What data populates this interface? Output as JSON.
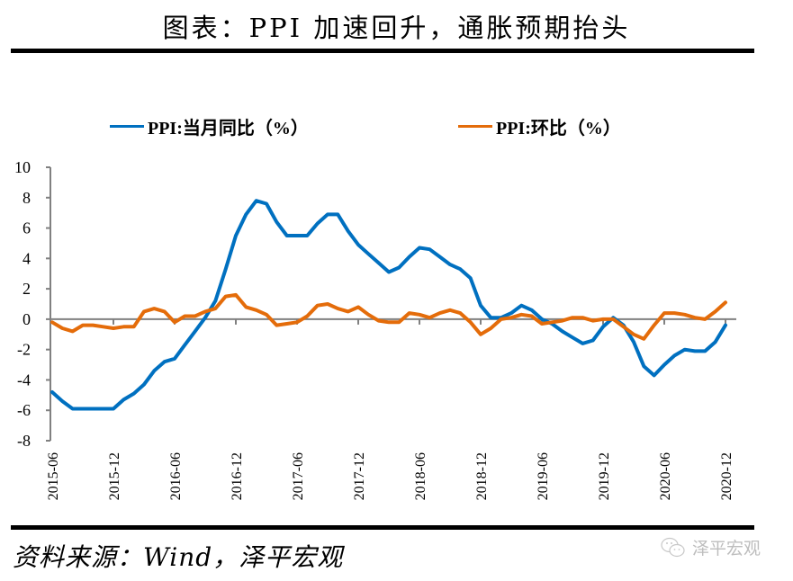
{
  "header": {
    "title": "图表：PPI 加速回升，通胀预期抬头"
  },
  "footer": {
    "source": "资料来源：Wind，泽平宏观",
    "watermark": "泽平宏观"
  },
  "colors": {
    "yoy": "#0070c0",
    "mom": "#e46c0a",
    "axis": "#808080"
  },
  "chart_data": {
    "type": "line",
    "title": "图表：PPI 加速回升，通胀预期抬头",
    "xlabel": "",
    "ylabel": "",
    "ylim": [
      -8,
      10
    ],
    "yticks": [
      10,
      8,
      6,
      4,
      2,
      0,
      -2,
      -4,
      -6,
      -8
    ],
    "xtick_labels": [
      "2015-06",
      "2015-12",
      "2016-06",
      "2016-12",
      "2017-06",
      "2017-12",
      "2018-06",
      "2018-12",
      "2019-06",
      "2019-12",
      "2020-06",
      "2020-12"
    ],
    "grid": false,
    "legend_position": "top",
    "x": [
      "2015-06",
      "2015-07",
      "2015-08",
      "2015-09",
      "2015-10",
      "2015-11",
      "2015-12",
      "2016-01",
      "2016-02",
      "2016-03",
      "2016-04",
      "2016-05",
      "2016-06",
      "2016-07",
      "2016-08",
      "2016-09",
      "2016-10",
      "2016-11",
      "2016-12",
      "2017-01",
      "2017-02",
      "2017-03",
      "2017-04",
      "2017-05",
      "2017-06",
      "2017-07",
      "2017-08",
      "2017-09",
      "2017-10",
      "2017-11",
      "2017-12",
      "2018-01",
      "2018-02",
      "2018-03",
      "2018-04",
      "2018-05",
      "2018-06",
      "2018-07",
      "2018-08",
      "2018-09",
      "2018-10",
      "2018-11",
      "2018-12",
      "2019-01",
      "2019-02",
      "2019-03",
      "2019-04",
      "2019-05",
      "2019-06",
      "2019-07",
      "2019-08",
      "2019-09",
      "2019-10",
      "2019-11",
      "2019-12",
      "2020-01",
      "2020-02",
      "2020-03",
      "2020-04",
      "2020-05",
      "2020-06",
      "2020-07",
      "2020-08",
      "2020-09",
      "2020-10",
      "2020-11",
      "2020-12"
    ],
    "series": [
      {
        "name": "PPI:当月同比（%）",
        "color": "#0070c0",
        "values": [
          -4.8,
          -5.4,
          -5.9,
          -5.9,
          -5.9,
          -5.9,
          -5.9,
          -5.3,
          -4.9,
          -4.3,
          -3.4,
          -2.8,
          -2.6,
          -1.7,
          -0.8,
          0.1,
          1.2,
          3.3,
          5.5,
          6.9,
          7.8,
          7.6,
          6.4,
          5.5,
          5.5,
          5.5,
          6.3,
          6.9,
          6.9,
          5.8,
          4.9,
          4.3,
          3.7,
          3.1,
          3.4,
          4.1,
          4.7,
          4.6,
          4.1,
          3.6,
          3.3,
          2.7,
          0.9,
          0.1,
          0.1,
          0.4,
          0.9,
          0.6,
          0.0,
          -0.3,
          -0.8,
          -1.2,
          -1.6,
          -1.4,
          -0.5,
          0.1,
          -0.4,
          -1.5,
          -3.1,
          -3.7,
          -3.0,
          -2.4,
          -2.0,
          -2.1,
          -2.1,
          -1.5,
          -0.4
        ]
      },
      {
        "name": "PPI:环比（%）",
        "color": "#e46c0a",
        "values": [
          -0.2,
          -0.6,
          -0.8,
          -0.4,
          -0.4,
          -0.5,
          -0.6,
          -0.5,
          -0.5,
          0.5,
          0.7,
          0.5,
          -0.2,
          0.2,
          0.2,
          0.5,
          0.7,
          1.5,
          1.6,
          0.8,
          0.6,
          0.3,
          -0.4,
          -0.3,
          -0.2,
          0.2,
          0.9,
          1.0,
          0.7,
          0.5,
          0.8,
          0.3,
          -0.1,
          -0.2,
          -0.2,
          0.4,
          0.3,
          0.1,
          0.4,
          0.6,
          0.4,
          -0.2,
          -1.0,
          -0.6,
          0.0,
          0.1,
          0.3,
          0.2,
          -0.3,
          -0.2,
          -0.1,
          0.1,
          0.1,
          -0.1,
          0.0,
          0.0,
          -0.5,
          -1.0,
          -1.3,
          -0.4,
          0.4,
          0.4,
          0.3,
          0.1,
          0.0,
          0.5,
          1.1
        ]
      }
    ]
  }
}
